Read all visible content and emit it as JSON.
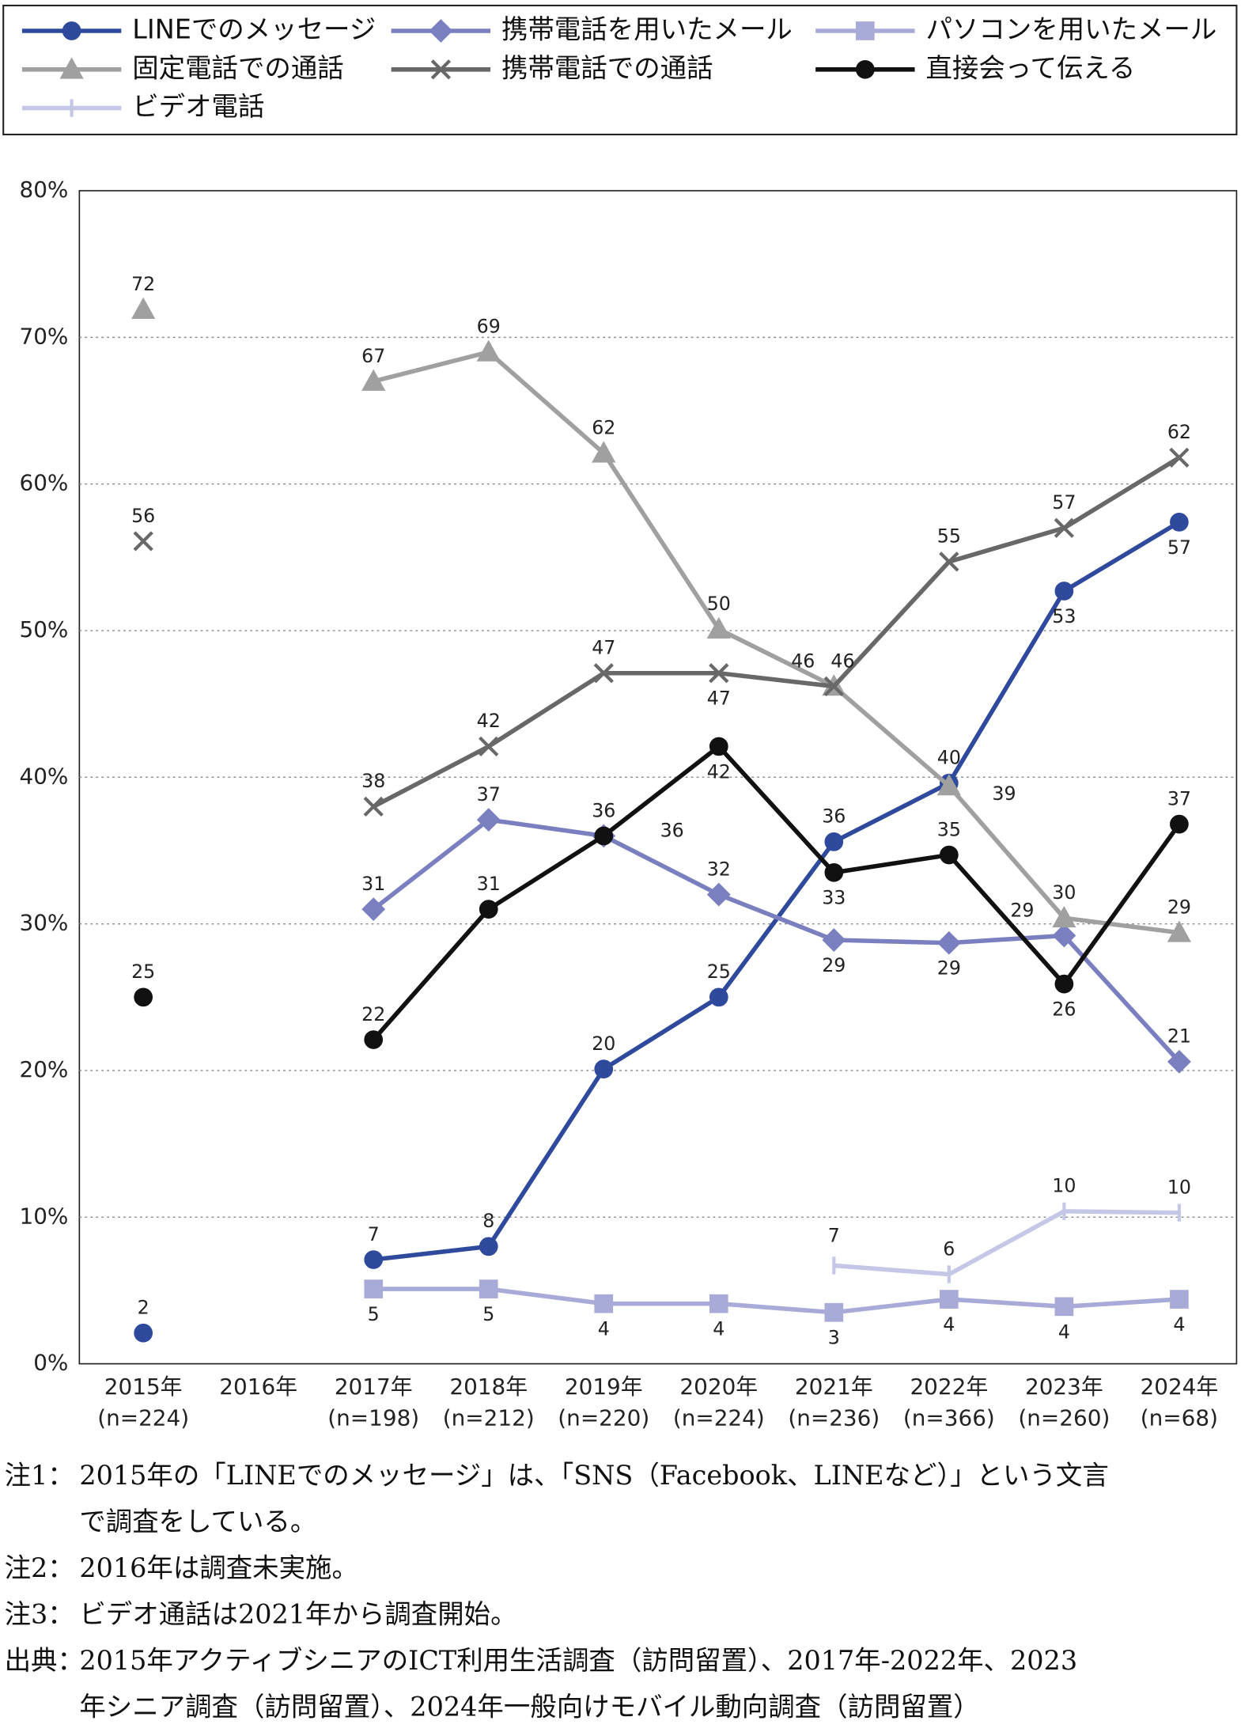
{
  "chart_data": {
    "type": "line",
    "categories": [
      "2015年",
      "2016年",
      "2017年",
      "2018年",
      "2019年",
      "2020年",
      "2021年",
      "2022年",
      "2023年",
      "2024年"
    ],
    "sample_sizes": [
      "(n=224)",
      null,
      "(n=198)",
      "(n=212)",
      "(n=220)",
      "(n=224)",
      "(n=236)",
      "(n=366)",
      "(n=260)",
      "(n=68)"
    ],
    "ylim": [
      0,
      80
    ],
    "yticks": [
      {
        "value": 0,
        "label": "0%"
      },
      {
        "value": 10,
        "label": "10%"
      },
      {
        "value": 20,
        "label": "20%"
      },
      {
        "value": 30,
        "label": "30%"
      },
      {
        "value": 40,
        "label": "40%"
      },
      {
        "value": 50,
        "label": "50%"
      },
      {
        "value": 60,
        "label": "60%"
      },
      {
        "value": 70,
        "label": "70%"
      },
      {
        "value": 80,
        "label": "80%"
      }
    ],
    "grid": true,
    "series": [
      {
        "name": "LINEでのメッセージ",
        "color": "#2f4a9c",
        "marker": "circle",
        "values": [
          2.1,
          null,
          7.1,
          8,
          20.1,
          25,
          35.6,
          39.6,
          52.7,
          57.4
        ],
        "value_labels": [
          "2",
          null,
          "7",
          "8",
          "20",
          "25",
          "36",
          "40",
          "53",
          "57"
        ]
      },
      {
        "name": "携帯電話を用いたメール",
        "color": "#7a7fc0",
        "marker": "diamond",
        "values": [
          null,
          null,
          31,
          37.1,
          36,
          32,
          28.9,
          28.7,
          29.2,
          20.6
        ],
        "value_labels": [
          null,
          null,
          "31",
          "37",
          "36",
          "32",
          "29",
          "29",
          "29",
          "21"
        ]
      },
      {
        "name": "パソコンを用いたメール",
        "color": "#a8abd8",
        "marker": "square",
        "values": [
          null,
          null,
          5.1,
          5.1,
          4.1,
          4.1,
          3.5,
          4.4,
          3.9,
          4.4
        ],
        "value_labels": [
          null,
          null,
          "5",
          "5",
          "4",
          "4",
          "3",
          "4",
          "4",
          "4"
        ]
      },
      {
        "name": "固定電話での通話",
        "color": "#a0a0a0",
        "marker": "triangle",
        "values": [
          71.9,
          null,
          67,
          69,
          62.1,
          50.1,
          46.2,
          39.4,
          30.4,
          29.4
        ],
        "value_labels": [
          "72",
          null,
          "67",
          "69",
          "62",
          "50",
          "46",
          "39",
          "30",
          "29"
        ]
      },
      {
        "name": "携帯電話での通話",
        "color": "#686868",
        "marker": "x",
        "values": [
          56.1,
          null,
          38,
          42.1,
          47.1,
          47.1,
          46.2,
          54.7,
          57,
          61.8
        ],
        "value_labels": [
          "56",
          null,
          "38",
          "42",
          "47",
          "47",
          "46",
          "55",
          "57",
          "62"
        ]
      },
      {
        "name": "直接会って伝える",
        "color": "#111111",
        "marker": "circle",
        "values": [
          25,
          null,
          22.1,
          31,
          36,
          42.1,
          33.5,
          34.7,
          25.9,
          36.8
        ],
        "value_labels": [
          "25",
          null,
          "22",
          "31",
          "36",
          "42",
          "33",
          "35",
          "26",
          "37"
        ]
      },
      {
        "name": "ビデオ電話",
        "color": "#c4c7e6",
        "marker": "plus",
        "values": [
          null,
          null,
          null,
          null,
          null,
          null,
          6.7,
          6.1,
          10.4,
          10.3
        ],
        "value_labels": [
          null,
          null,
          null,
          null,
          null,
          null,
          "7",
          "6",
          "10",
          "10"
        ]
      }
    ]
  },
  "notes": [
    {
      "label": "注1：",
      "lines": [
        "2015年の「LINEでのメッセージ」は、「SNS（Facebook、LINEなど）」という文言",
        "で調査をしている。"
      ]
    },
    {
      "label": "注2：",
      "lines": [
        "2016年は調査未実施。"
      ]
    },
    {
      "label": "注3：",
      "lines": [
        "ビデオ通話は2021年から調査開始。"
      ]
    },
    {
      "label": "出典：",
      "lines": [
        "2015年アクティブシニアのICT利用生活調査（訪問留置）、2017年-2022年、2023",
        "年シニア調査（訪問留置）、2024年一般向けモバイル動向調査（訪問留置）"
      ]
    }
  ]
}
